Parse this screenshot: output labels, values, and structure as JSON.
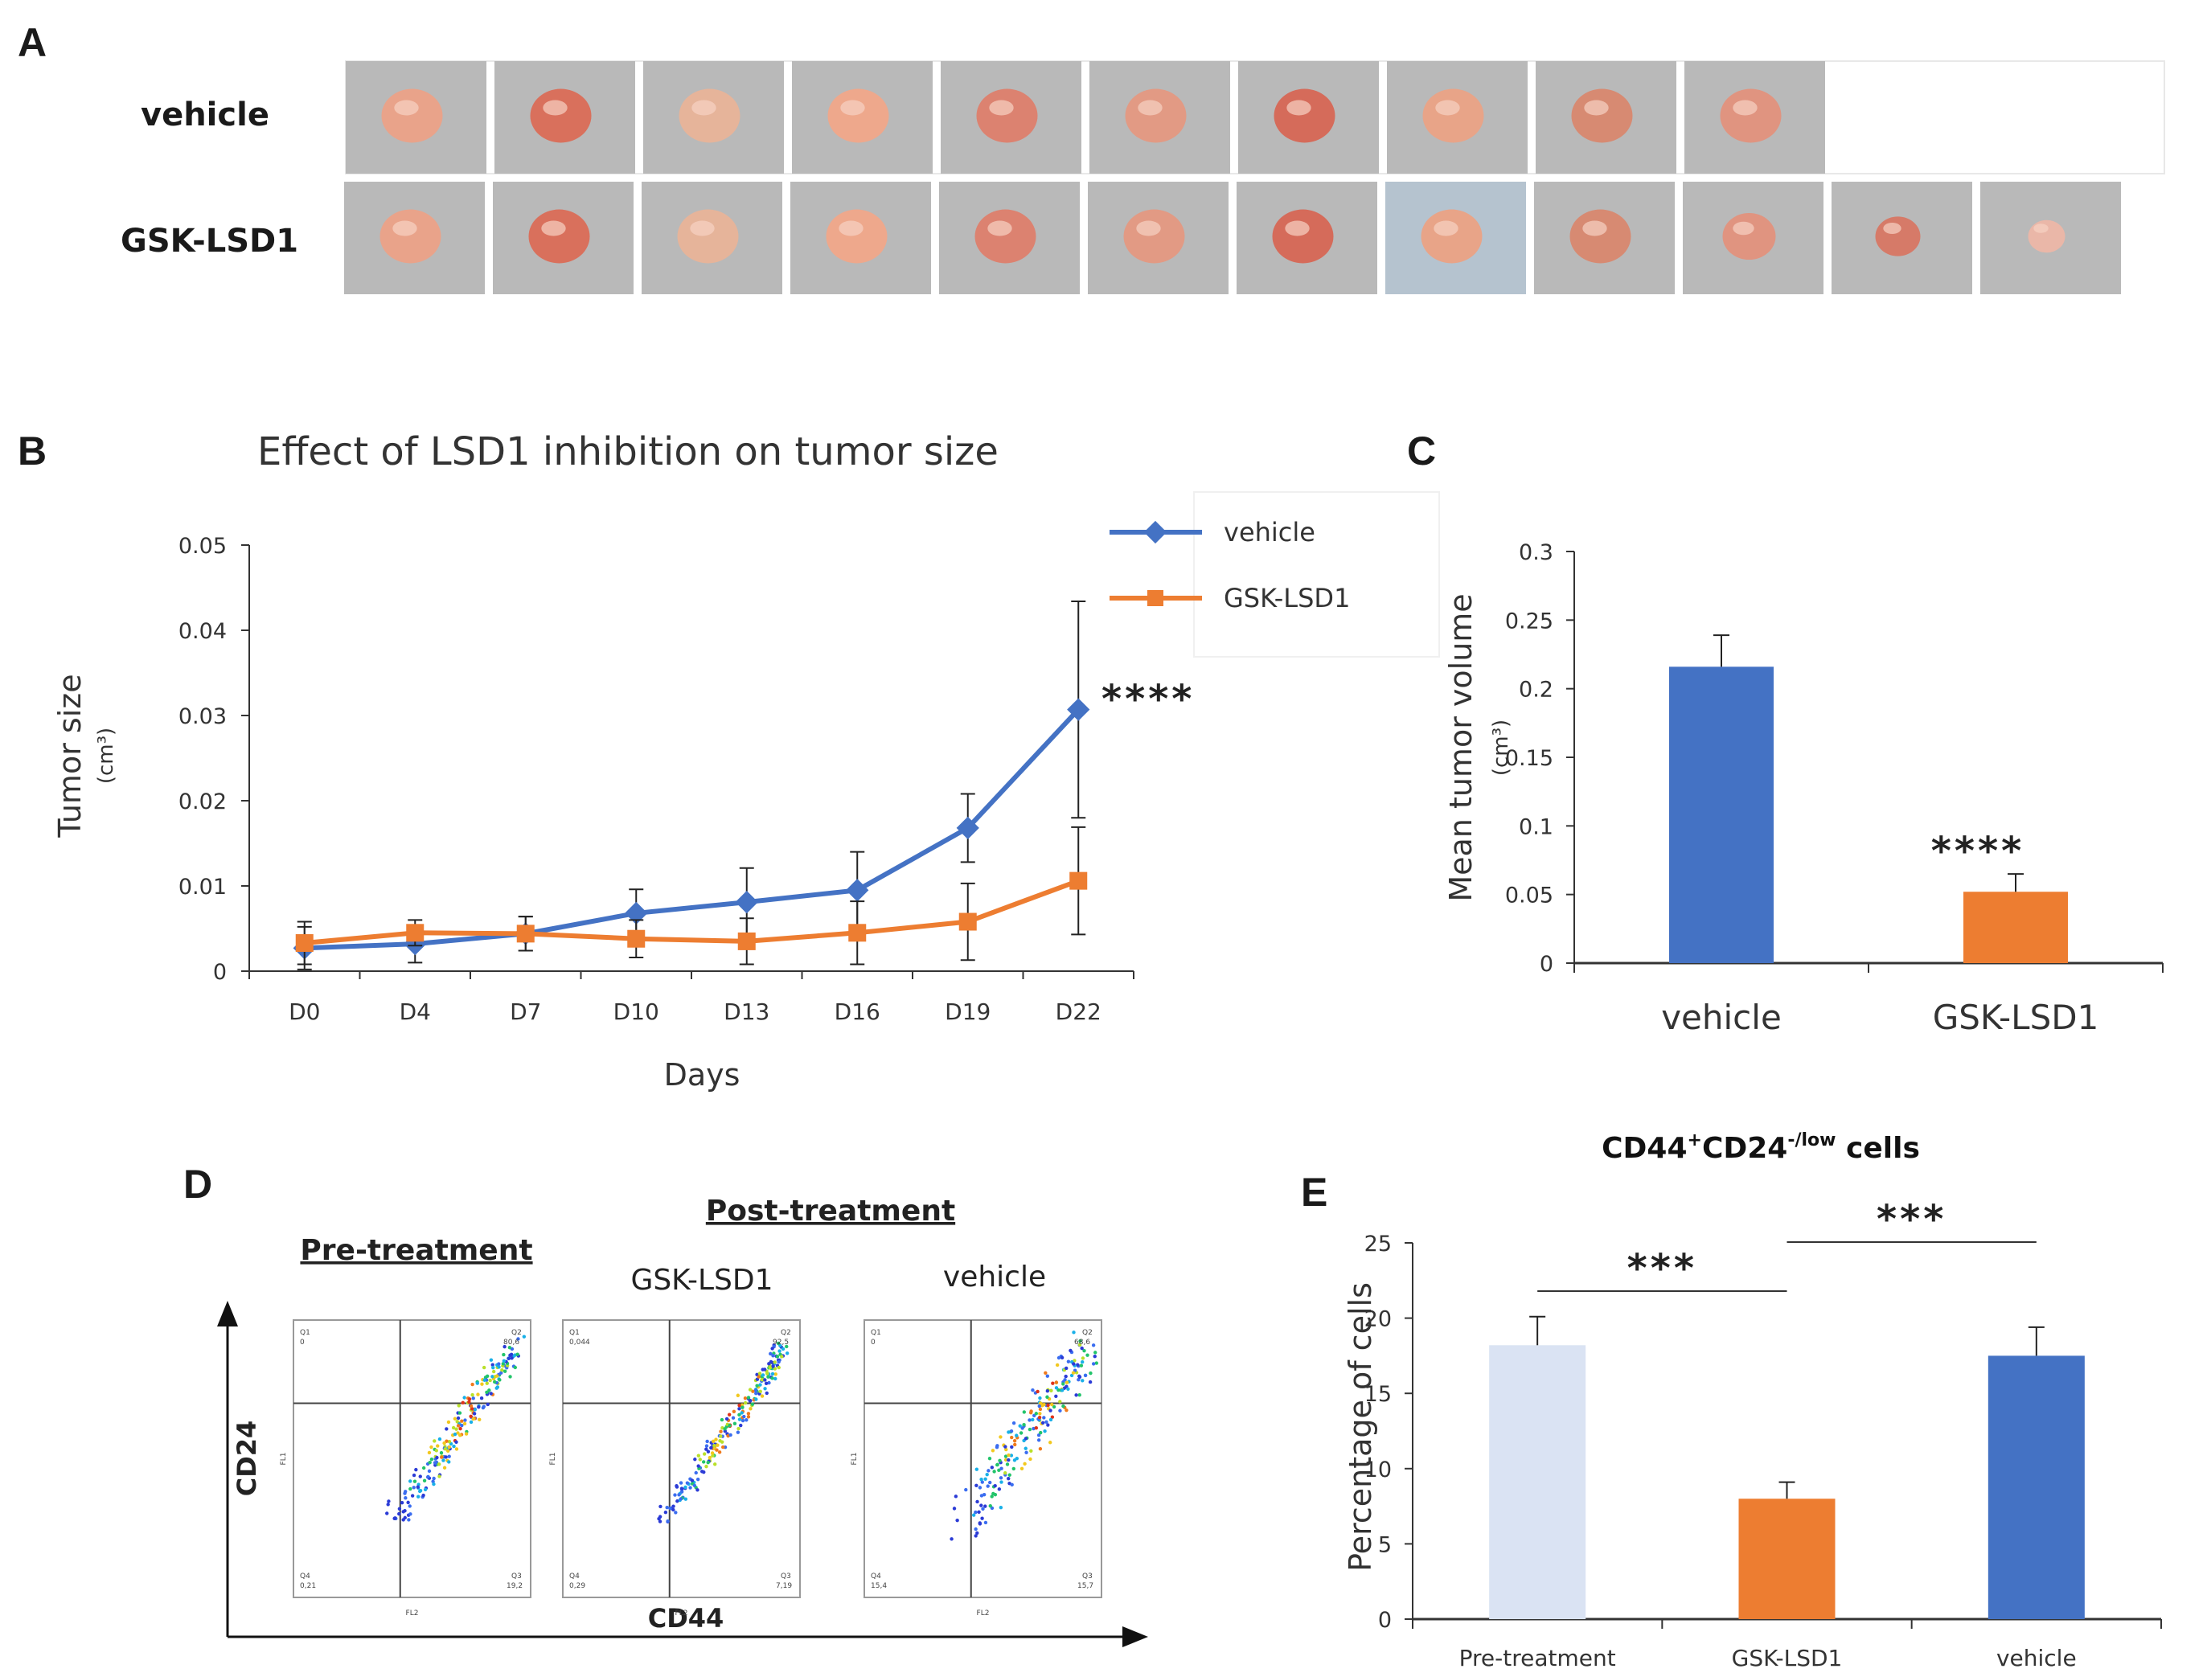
{
  "panel_labels": {
    "a": "A",
    "b": "B",
    "c": "C",
    "d": "D",
    "e": "E"
  },
  "panel_a": {
    "rows": [
      {
        "label": "vehicle",
        "count": 10
      },
      {
        "label": "GSK-LSD1",
        "count": 12
      }
    ]
  },
  "colors": {
    "vehicle": "#4472C4",
    "gsk": "#ED7D31",
    "pre": "#DAE3F3",
    "axis": "#333333"
  },
  "chart_data": [
    {
      "id": "B",
      "type": "line",
      "title": "Effect of LSD1 inhibition on tumor size",
      "xlabel": "Days",
      "ylabel": "Tumor size",
      "yunit": "(cm³)",
      "categories": [
        "D0",
        "D4",
        "D7",
        "D10",
        "D13",
        "D16",
        "D19",
        "D22"
      ],
      "ylim": [
        0,
        0.05
      ],
      "yticks": [
        "0",
        "0.01",
        "0.02",
        "0.03",
        "0.04",
        "0.05"
      ],
      "series": [
        {
          "name": "vehicle",
          "values": [
            0.0027,
            0.0032,
            0.0044,
            0.0068,
            0.0081,
            0.0095,
            0.0168,
            0.0307
          ],
          "err": [
            0.0025,
            0.0022,
            0.002,
            0.0028,
            0.004,
            0.0045,
            0.004,
            0.0127
          ]
        },
        {
          "name": "GSK-LSD1",
          "values": [
            0.0033,
            0.0045,
            0.0044,
            0.0038,
            0.0035,
            0.0045,
            0.0058,
            0.0106
          ],
          "err": [
            0.0025,
            0.0015,
            0.002,
            0.0022,
            0.0027,
            0.0037,
            0.0045,
            0.0063
          ]
        }
      ],
      "annotation": "****",
      "legend": [
        "vehicle",
        "GSK-LSD1"
      ],
      "legend_position": "top-right"
    },
    {
      "id": "C",
      "type": "bar",
      "categories": [
        "vehicle",
        "GSK-LSD1"
      ],
      "values": [
        0.216,
        0.052
      ],
      "err": [
        0.023,
        0.013
      ],
      "ylabel": "Mean tumor volume",
      "yunit": "(cm³)",
      "ylim": [
        0,
        0.3
      ],
      "yticks": [
        "0",
        "0.05",
        "0.1",
        "0.15",
        "0.2",
        "0.25",
        "0.3"
      ],
      "annotation": "****"
    },
    {
      "id": "E",
      "type": "bar",
      "title": "CD44⁺CD24⁻/low cells",
      "title_parts": {
        "a": "CD44",
        "sup1": "+",
        "b": "CD24",
        "sup2": "-/low",
        "c": " cells"
      },
      "categories": [
        "Pre-treatment",
        "GSK-LSD1",
        "vehicle"
      ],
      "values": [
        18.2,
        8.0,
        17.5
      ],
      "err": [
        1.9,
        1.1,
        1.9
      ],
      "ylabel": "Percentage of cells",
      "ylim": [
        0,
        25
      ],
      "yticks": [
        "0",
        "5",
        "10",
        "15",
        "20",
        "25"
      ],
      "comparisons": [
        {
          "from": "Pre-treatment",
          "to": "GSK-LSD1",
          "label": "***"
        },
        {
          "from": "GSK-LSD1",
          "to": "vehicle",
          "label": "***"
        }
      ]
    }
  ],
  "panel_d": {
    "pre_label": "Pre-treatment",
    "post_label": "Post-treatment",
    "plot_titles": [
      "GSK-LSD1",
      "vehicle"
    ],
    "x_axis": "CD44",
    "y_axis": "CD24",
    "plots": [
      {
        "q1": "0",
        "q2": "80,6",
        "q3": "19,2",
        "q4": "0,21"
      },
      {
        "q1": "0,044",
        "q2": "92,5",
        "q3": "7,19",
        "q4": "0,29"
      },
      {
        "q1": "0",
        "q2": "68,6",
        "q3": "15,7",
        "q4": "15,4"
      }
    ]
  }
}
